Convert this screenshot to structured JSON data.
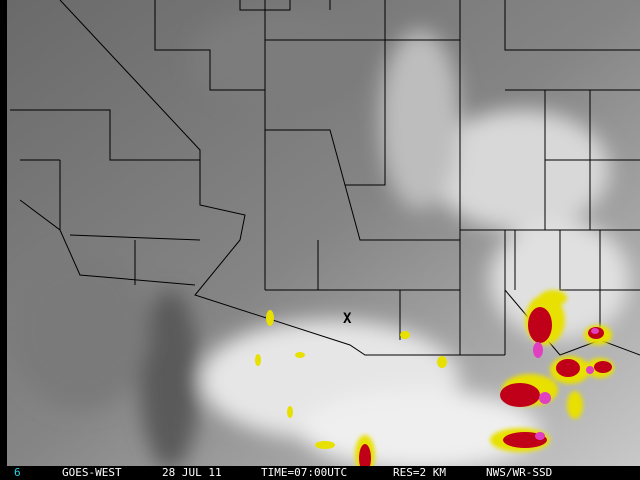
{
  "footer": {
    "channel": "6",
    "satellite": "GOES-WEST",
    "date": "28 JUL 11",
    "time": "TIME=07:00UTC",
    "resolution": "RES=2 KM",
    "source": "NWS/WR-SSD"
  },
  "marker": "X",
  "colors": {
    "channel_text": "#30d0e0",
    "footer_text": "#ffffff",
    "border_lines": "#000000",
    "storm_yellow": "#e8e000",
    "storm_red": "#c00018",
    "storm_magenta": "#e040c0"
  }
}
